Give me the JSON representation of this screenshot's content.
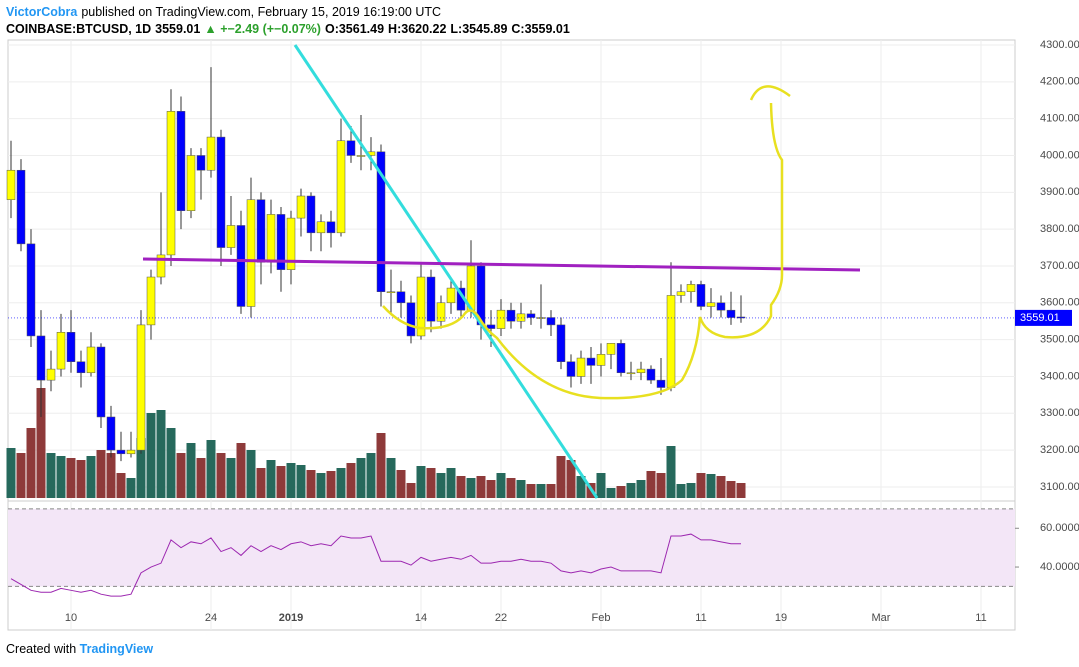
{
  "header": {
    "author": "VictorCobra",
    "published": "published on TradingView.com, February 15, 2019 16:19:00 UTC",
    "symbol": "COINBASE:BTCUSD, 1D",
    "last": "3559.01",
    "change": "▲ +−2.49 (+−0.07%)",
    "open": "O:3561.49",
    "high": "H:3620.22",
    "low": "L:3545.89",
    "close": "C:3559.01"
  },
  "footer": {
    "created": "Created with",
    "brand": "TradingView"
  },
  "chart_data": {
    "type": "candlestick",
    "categories": [
      null,
      null,
      null,
      null,
      null,
      null,
      "10",
      null,
      null,
      null,
      null,
      null,
      null,
      null,
      null,
      null,
      null,
      null,
      null,
      null,
      "24",
      null,
      null,
      null,
      null,
      null,
      null,
      null,
      "2019",
      null,
      null,
      null,
      null,
      null,
      null,
      null,
      null,
      null,
      null,
      null,
      null,
      "14",
      null,
      null,
      null,
      null,
      null,
      null,
      null,
      "22",
      null,
      null,
      null,
      null,
      null,
      null,
      null,
      null,
      null,
      "Feb",
      null,
      null,
      null,
      null,
      null,
      null,
      null,
      null,
      null,
      "11",
      null,
      null,
      null,
      null,
      null,
      null,
      null,
      "19",
      null,
      null,
      null,
      null,
      null,
      null,
      null,
      null,
      null,
      "Mar",
      null,
      null,
      null,
      null,
      null,
      null,
      null,
      null,
      null,
      "11",
      null,
      null,
      null
    ],
    "open": [
      3880,
      3960,
      3760,
      3510,
      3390,
      3420,
      3520,
      3440,
      3410,
      3480,
      3290,
      3200,
      3190,
      3200,
      3540,
      3670,
      3730,
      4120,
      3850,
      4000,
      3960,
      4050,
      3750,
      3810,
      3590,
      3880,
      3710,
      3840,
      3690,
      3830,
      3890,
      3790,
      3820,
      3790,
      4040,
      4000,
      4000,
      4010,
      3630,
      3630,
      3600,
      3510,
      3670,
      3550,
      3600,
      3640,
      3580,
      3700,
      3540,
      3530,
      3580,
      3550,
      3570,
      3560,
      3560,
      3540,
      3440,
      3400,
      3450,
      3430,
      3460,
      3490,
      3410,
      3410,
      3420,
      3390,
      3370,
      3620,
      3630,
      3650,
      3590,
      3600,
      3580,
      3561.49,
      null,
      null,
      null,
      null,
      null,
      null,
      null,
      null,
      null,
      null,
      null,
      null,
      null,
      null,
      null,
      null,
      null,
      null,
      null,
      null,
      null,
      null,
      null,
      null,
      null,
      null,
      null
    ],
    "high": [
      4040,
      3990,
      3800,
      3580,
      3470,
      3570,
      3580,
      3470,
      3520,
      3490,
      3320,
      3250,
      3250,
      3580,
      3690,
      3900,
      4180,
      4160,
      4020,
      4020,
      4240,
      4070,
      3890,
      3850,
      3940,
      3900,
      3880,
      3860,
      3850,
      3910,
      3900,
      3840,
      3850,
      4100,
      4080,
      4110,
      4050,
      4030,
      3690,
      3660,
      3620,
      3710,
      3690,
      3620,
      3670,
      3660,
      3770,
      3710,
      3580,
      3610,
      3600,
      3600,
      3580,
      3650,
      3580,
      3560,
      3460,
      3470,
      3480,
      3490,
      3490,
      3500,
      3440,
      3440,
      3430,
      3450,
      3710,
      3650,
      3660,
      3660,
      3640,
      3620,
      3630,
      3620.22,
      null,
      null,
      null,
      null,
      null,
      null,
      null,
      null,
      null,
      null,
      null,
      null,
      null,
      null,
      null,
      null,
      null,
      null,
      null,
      null,
      null,
      null,
      null,
      null,
      null,
      null,
      null
    ],
    "low": [
      3830,
      3740,
      3480,
      3290,
      3360,
      3400,
      3410,
      3370,
      3400,
      3260,
      3180,
      3170,
      3180,
      3190,
      3500,
      3650,
      3700,
      3800,
      3830,
      3880,
      3940,
      3700,
      3730,
      3570,
      3560,
      3650,
      3680,
      3630,
      3650,
      3780,
      3740,
      3740,
      3750,
      3780,
      3980,
      3960,
      3960,
      3590,
      3570,
      3560,
      3490,
      3500,
      3520,
      3530,
      3570,
      3560,
      3560,
      3500,
      3480,
      3510,
      3530,
      3530,
      3540,
      3530,
      3510,
      3420,
      3370,
      3380,
      3380,
      3400,
      3420,
      3400,
      3390,
      3390,
      3380,
      3350,
      3360,
      3600,
      3600,
      3580,
      3560,
      3560,
      3540,
      3545.89,
      null,
      null,
      null,
      null,
      null,
      null,
      null,
      null,
      null,
      null,
      null,
      null,
      null,
      null,
      null,
      null,
      null,
      null,
      null,
      null,
      null,
      null,
      null,
      null,
      null,
      null,
      null
    ],
    "close": [
      3960,
      3760,
      3510,
      3390,
      3420,
      3520,
      3440,
      3410,
      3480,
      3290,
      3200,
      3190,
      3200,
      3540,
      3670,
      3730,
      4120,
      3850,
      4000,
      3960,
      4050,
      3750,
      3810,
      3590,
      3880,
      3710,
      3840,
      3690,
      3830,
      3890,
      3790,
      3820,
      3790,
      4040,
      4000,
      4000,
      4010,
      3630,
      3630,
      3600,
      3510,
      3670,
      3550,
      3600,
      3640,
      3580,
      3700,
      3540,
      3530,
      3580,
      3550,
      3570,
      3560,
      3560,
      3540,
      3440,
      3400,
      3450,
      3430,
      3460,
      3490,
      3410,
      3410,
      3420,
      3390,
      3370,
      3620,
      3630,
      3650,
      3590,
      3600,
      3580,
      3560,
      3559.01,
      null,
      null,
      null,
      null,
      null,
      null,
      null,
      null,
      null,
      null,
      null,
      null,
      null,
      null,
      null,
      null,
      null,
      null,
      null,
      null,
      null,
      null,
      null,
      null,
      null,
      null,
      null
    ],
    "volume": [
      50,
      45,
      70,
      110,
      45,
      42,
      40,
      38,
      42,
      48,
      45,
      25,
      20,
      60,
      85,
      88,
      70,
      45,
      55,
      40,
      58,
      45,
      40,
      55,
      48,
      30,
      38,
      32,
      35,
      33,
      28,
      25,
      27,
      30,
      35,
      40,
      45,
      65,
      40,
      28,
      15,
      32,
      30,
      25,
      30,
      22,
      20,
      22,
      18,
      25,
      20,
      18,
      14,
      14,
      14,
      42,
      38,
      22,
      15,
      25,
      10,
      12,
      15,
      18,
      27,
      25,
      52,
      14,
      15,
      25,
      24,
      22,
      17,
      15,
      null,
      null,
      null,
      null,
      null,
      null,
      null,
      null,
      null,
      null,
      null,
      null,
      null,
      null,
      null,
      null,
      null,
      null,
      null,
      null,
      null,
      null,
      null,
      null,
      null,
      null,
      null
    ],
    "rsi": [
      34,
      31,
      28,
      27,
      27,
      29,
      28,
      27,
      28,
      26,
      25,
      25,
      26,
      37,
      40,
      42,
      54,
      50,
      53,
      52,
      55,
      48,
      50,
      46,
      51,
      48,
      51,
      49,
      52,
      53,
      51,
      52,
      51,
      56,
      55,
      55,
      56,
      43,
      43,
      43,
      41,
      45,
      43,
      44,
      45,
      44,
      46,
      42,
      42,
      43,
      43,
      44,
      43,
      43,
      42,
      38,
      37,
      38,
      37,
      39,
      40,
      38,
      38,
      38,
      38,
      37,
      56,
      56,
      57,
      54,
      54,
      53,
      52,
      52,
      null,
      null,
      null,
      null,
      null,
      null,
      null,
      null,
      null,
      null,
      null,
      null,
      null,
      null,
      null,
      null,
      null,
      null,
      null,
      null,
      null,
      null,
      null,
      null,
      null,
      null,
      null
    ],
    "ylim": [
      3070,
      4300
    ],
    "yticks": [
      {
        "value": 3100,
        "label": "3100.00"
      },
      {
        "value": 3200,
        "label": "3200.00"
      },
      {
        "value": 3300,
        "label": "3300.00"
      },
      {
        "value": 3400,
        "label": "3400.00"
      },
      {
        "value": 3500,
        "label": "3500.00"
      },
      {
        "value": 3600,
        "label": "3600.00"
      },
      {
        "value": 3700,
        "label": "3700.00"
      },
      {
        "value": 3800,
        "label": "3800.00"
      },
      {
        "value": 3900,
        "label": "3900.00"
      },
      {
        "value": 4000,
        "label": "4000.00"
      },
      {
        "value": 4100,
        "label": "4100.00"
      },
      {
        "value": 4200,
        "label": "4200.00"
      },
      {
        "value": 4300,
        "label": "4300.00"
      }
    ],
    "rsi_ylim": [
      23,
      72
    ],
    "rsi_yticks": [
      {
        "value": 40,
        "label": "40.0000"
      },
      {
        "value": 60,
        "label": "60.0000"
      }
    ],
    "rsi_bands": [
      30,
      70
    ],
    "up_color": "#ffff00",
    "down_color": "#0000ff",
    "volume_up_color": "#26695c",
    "volume_down_color": "#8e3a3a",
    "rsi_color": "#9c27b0",
    "last_price_color": "#0000ff",
    "grid": true
  }
}
